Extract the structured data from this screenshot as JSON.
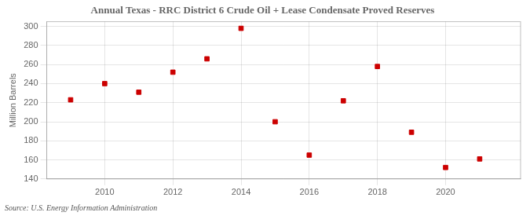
{
  "chart_data": {
    "type": "scatter",
    "title": "Annual Texas - RRC District 6 Crude Oil + Lease Condensate Proved Reserves",
    "ylabel": "Million Barrels",
    "annotations": [
      "Source: U.S. Energy Information Administration"
    ],
    "x": [
      2009,
      2010,
      2011,
      2012,
      2013,
      2014,
      2015,
      2016,
      2017,
      2018,
      2019,
      2020,
      2021
    ],
    "values": [
      223,
      240,
      231,
      252,
      266,
      298,
      200,
      165,
      222,
      258,
      189,
      152,
      161
    ],
    "xlim": [
      2008.3,
      2022.2
    ],
    "xticks": [
      2010,
      2012,
      2014,
      2016,
      2018,
      2020
    ],
    "ylim": [
      140,
      305
    ],
    "yticks": [
      140,
      160,
      180,
      200,
      220,
      240,
      260,
      280,
      300
    ],
    "color": "#cc0000",
    "marker": "square",
    "grid": true
  }
}
